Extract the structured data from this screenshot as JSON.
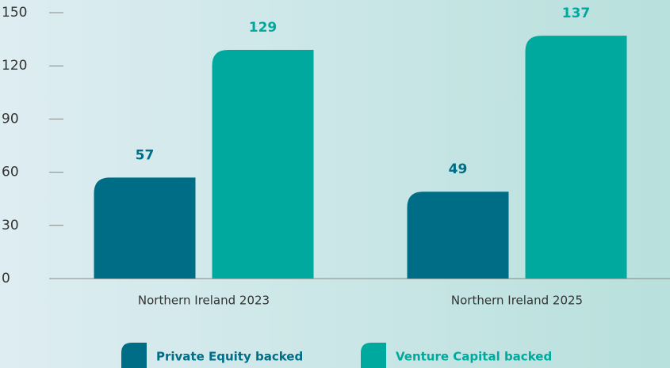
{
  "chart_data": {
    "type": "bar",
    "categories": [
      "Northern Ireland 2023",
      "Northern Ireland 2025"
    ],
    "series": [
      {
        "name": "Private Equity backed",
        "color": "#006d87",
        "values": [
          57,
          49
        ]
      },
      {
        "name": "Venture Capital backed",
        "color": "#00a99d",
        "values": [
          129,
          137
        ]
      }
    ],
    "ylim": [
      0,
      150
    ],
    "yticks": [
      0,
      30,
      60,
      90,
      120,
      150
    ],
    "legend": "bottom"
  }
}
